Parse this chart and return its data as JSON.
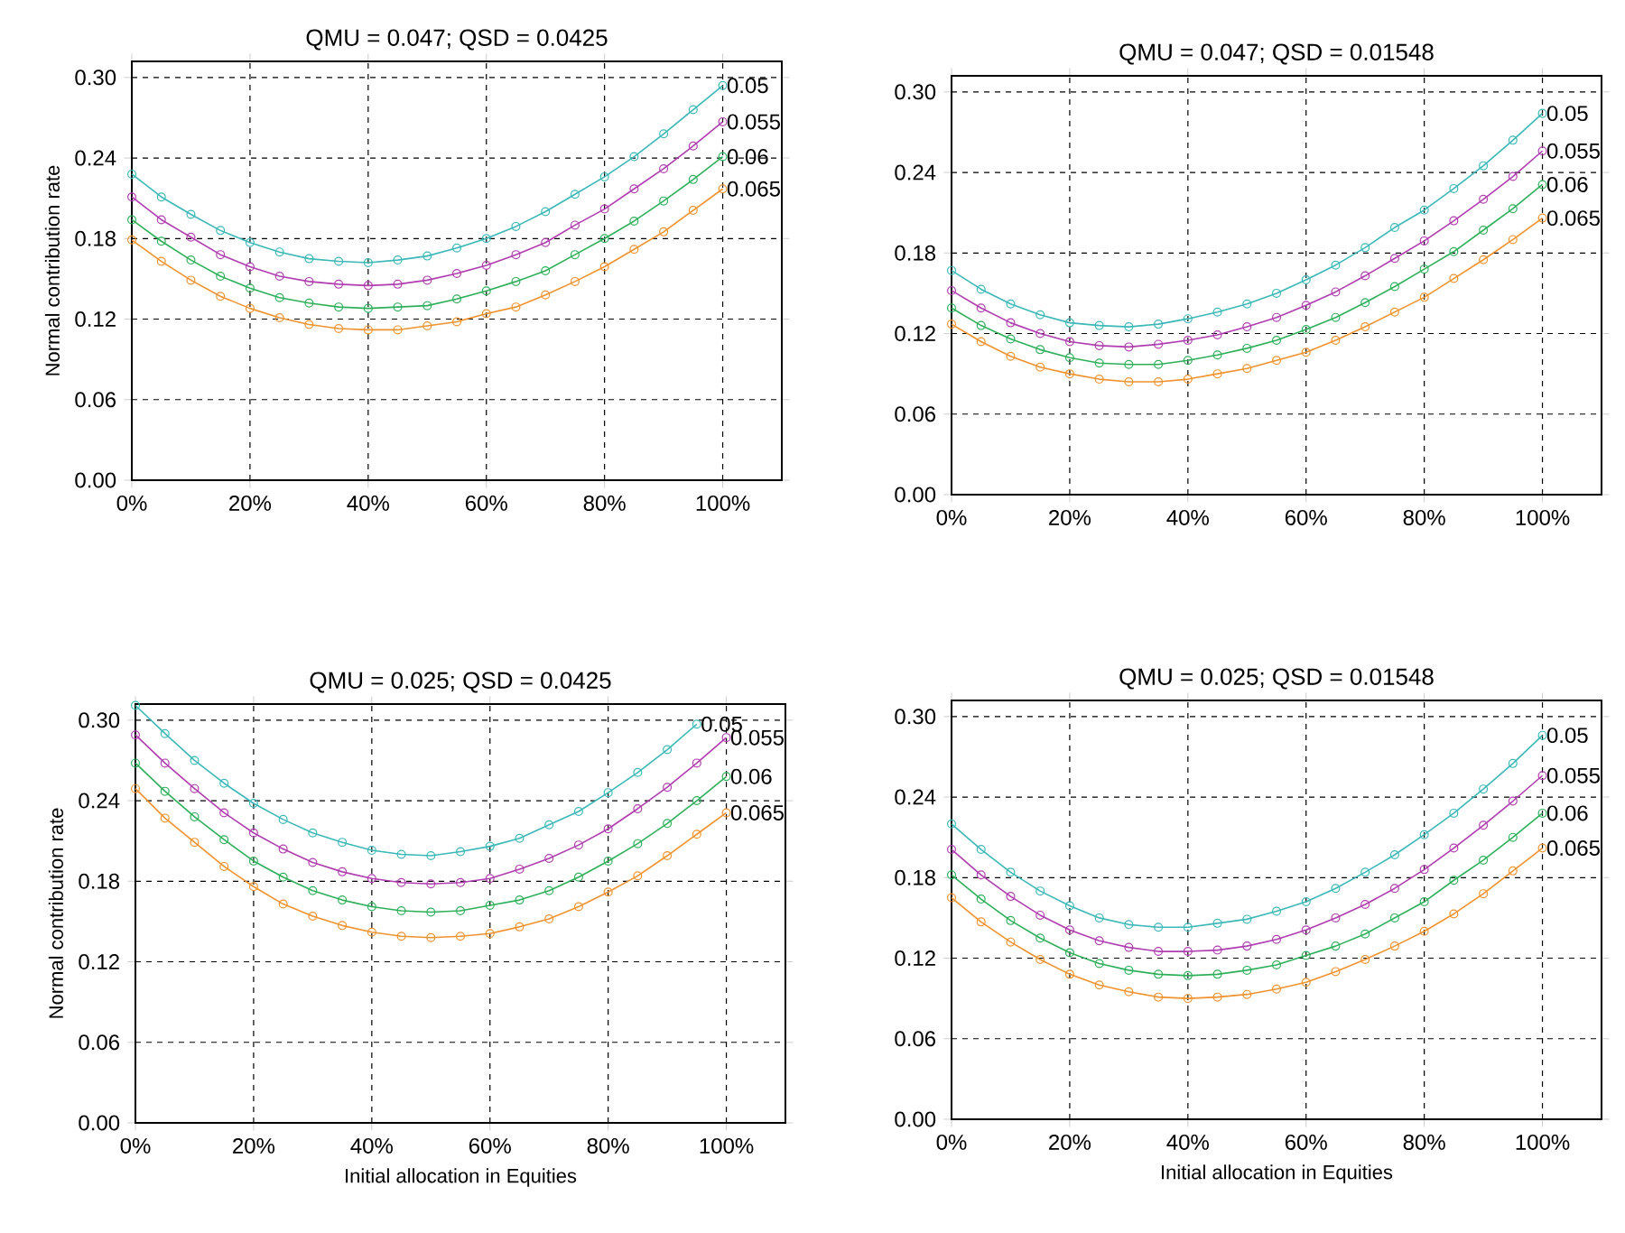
{
  "chart_data": [
    {
      "type": "line",
      "title": "QMU = 0.047; QSD = 0.0425",
      "ylabel": "Normal contribution rate",
      "grid": true,
      "marker": "circle",
      "line_style": "solid",
      "x": [
        0,
        5,
        10,
        15,
        20,
        25,
        30,
        35,
        40,
        45,
        50,
        55,
        60,
        65,
        70,
        75,
        80,
        85,
        90,
        95,
        100
      ],
      "xlim": [
        0,
        110
      ],
      "ylim": [
        0,
        0.312
      ],
      "xticks": [
        {
          "value": 0,
          "label": "0%"
        },
        {
          "value": 20,
          "label": "20%"
        },
        {
          "value": 40,
          "label": "40%"
        },
        {
          "value": 60,
          "label": "60%"
        },
        {
          "value": 80,
          "label": "80%"
        },
        {
          "value": 100,
          "label": "100%"
        }
      ],
      "yticks": [
        {
          "value": 0,
          "label": "0.00"
        },
        {
          "value": 0.06,
          "label": "0.06"
        },
        {
          "value": 0.12,
          "label": "0.12"
        },
        {
          "value": 0.18,
          "label": "0.18"
        },
        {
          "value": 0.24,
          "label": "0.24"
        },
        {
          "value": 0.3,
          "label": "0.30"
        }
      ],
      "series": [
        {
          "name": "0.05",
          "color": "#3bb8b8",
          "values": [
            0.228,
            0.211,
            0.198,
            0.186,
            0.177,
            0.17,
            0.165,
            0.163,
            0.162,
            0.164,
            0.167,
            0.173,
            0.18,
            0.189,
            0.2,
            0.213,
            0.226,
            0.241,
            0.258,
            0.276,
            0.294
          ]
        },
        {
          "name": "0.055",
          "color": "#b03cb0",
          "values": [
            0.211,
            0.194,
            0.181,
            0.168,
            0.159,
            0.152,
            0.148,
            0.146,
            0.145,
            0.146,
            0.149,
            0.154,
            0.16,
            0.168,
            0.177,
            0.19,
            0.202,
            0.217,
            0.232,
            0.249,
            0.267
          ]
        },
        {
          "name": "0.06",
          "color": "#2eb05a",
          "values": [
            0.194,
            0.178,
            0.164,
            0.152,
            0.143,
            0.136,
            0.132,
            0.129,
            0.128,
            0.129,
            0.13,
            0.135,
            0.141,
            0.148,
            0.156,
            0.168,
            0.18,
            0.193,
            0.208,
            0.224,
            0.241
          ]
        },
        {
          "name": "0.065",
          "color": "#f0922e",
          "values": [
            0.179,
            0.163,
            0.149,
            0.137,
            0.128,
            0.121,
            0.116,
            0.113,
            0.112,
            0.112,
            0.115,
            0.118,
            0.124,
            0.129,
            0.138,
            0.148,
            0.159,
            0.172,
            0.185,
            0.201,
            0.217
          ]
        }
      ]
    },
    {
      "type": "line",
      "title": "QMU = 0.047; QSD = 0.01548",
      "grid": true,
      "marker": "circle",
      "line_style": "solid",
      "x": [
        0,
        5,
        10,
        15,
        20,
        25,
        30,
        35,
        40,
        45,
        50,
        55,
        60,
        65,
        70,
        75,
        80,
        85,
        90,
        95,
        100
      ],
      "xlim": [
        0,
        110
      ],
      "ylim": [
        0,
        0.312
      ],
      "xticks": [
        {
          "value": 0,
          "label": "0%"
        },
        {
          "value": 20,
          "label": "20%"
        },
        {
          "value": 40,
          "label": "40%"
        },
        {
          "value": 60,
          "label": "60%"
        },
        {
          "value": 80,
          "label": "80%"
        },
        {
          "value": 100,
          "label": "100%"
        }
      ],
      "yticks": [
        {
          "value": 0,
          "label": "0.00"
        },
        {
          "value": 0.06,
          "label": "0.06"
        },
        {
          "value": 0.12,
          "label": "0.12"
        },
        {
          "value": 0.18,
          "label": "0.18"
        },
        {
          "value": 0.24,
          "label": "0.24"
        },
        {
          "value": 0.3,
          "label": "0.30"
        }
      ],
      "series": [
        {
          "name": "0.05",
          "color": "#3bb8b8",
          "values": [
            0.167,
            0.153,
            0.142,
            0.134,
            0.128,
            0.126,
            0.125,
            0.127,
            0.131,
            0.136,
            0.142,
            0.15,
            0.16,
            0.171,
            0.184,
            0.199,
            0.212,
            0.228,
            0.245,
            0.264,
            0.284
          ]
        },
        {
          "name": "0.055",
          "color": "#b03cb0",
          "values": [
            0.152,
            0.139,
            0.128,
            0.12,
            0.114,
            0.111,
            0.11,
            0.112,
            0.115,
            0.119,
            0.125,
            0.132,
            0.141,
            0.151,
            0.163,
            0.176,
            0.189,
            0.204,
            0.22,
            0.237,
            0.256
          ]
        },
        {
          "name": "0.06",
          "color": "#2eb05a",
          "values": [
            0.139,
            0.126,
            0.116,
            0.108,
            0.102,
            0.098,
            0.097,
            0.097,
            0.1,
            0.104,
            0.109,
            0.115,
            0.123,
            0.132,
            0.143,
            0.155,
            0.168,
            0.181,
            0.197,
            0.213,
            0.231
          ]
        },
        {
          "name": "0.065",
          "color": "#f0922e",
          "values": [
            0.127,
            0.114,
            0.103,
            0.095,
            0.09,
            0.086,
            0.084,
            0.084,
            0.086,
            0.09,
            0.094,
            0.1,
            0.106,
            0.115,
            0.125,
            0.136,
            0.147,
            0.161,
            0.175,
            0.19,
            0.206
          ]
        }
      ]
    },
    {
      "type": "line",
      "title": "QMU = 0.025; QSD = 0.0425",
      "xlabel": "Initial allocation in Equities",
      "ylabel": "Normal contribution rate",
      "grid": true,
      "marker": "circle",
      "line_style": "solid",
      "x": [
        0,
        5,
        10,
        15,
        20,
        25,
        30,
        35,
        40,
        45,
        50,
        55,
        60,
        65,
        70,
        75,
        80,
        85,
        90,
        95,
        100
      ],
      "xlim": [
        0,
        110
      ],
      "ylim": [
        0,
        0.312
      ],
      "xticks": [
        {
          "value": 0,
          "label": "0%"
        },
        {
          "value": 20,
          "label": "20%"
        },
        {
          "value": 40,
          "label": "40%"
        },
        {
          "value": 60,
          "label": "60%"
        },
        {
          "value": 80,
          "label": "80%"
        },
        {
          "value": 100,
          "label": "100%"
        }
      ],
      "yticks": [
        {
          "value": 0,
          "label": "0.00"
        },
        {
          "value": 0.06,
          "label": "0.06"
        },
        {
          "value": 0.12,
          "label": "0.12"
        },
        {
          "value": 0.18,
          "label": "0.18"
        },
        {
          "value": 0.24,
          "label": "0.24"
        },
        {
          "value": 0.3,
          "label": "0.30"
        }
      ],
      "series": [
        {
          "name": "0.05",
          "color": "#3bb8b8",
          "values": [
            0.311,
            0.29,
            0.27,
            0.253,
            0.238,
            0.226,
            0.216,
            0.209,
            0.203,
            0.2,
            0.199,
            0.202,
            0.206,
            0.212,
            0.222,
            0.232,
            0.246,
            0.261,
            0.278,
            0.297,
            null
          ]
        },
        {
          "name": "0.055",
          "color": "#b03cb0",
          "values": [
            0.289,
            0.268,
            0.249,
            0.231,
            0.216,
            0.204,
            0.194,
            0.187,
            0.182,
            0.179,
            0.178,
            0.179,
            0.182,
            0.189,
            0.197,
            0.207,
            0.219,
            0.234,
            0.25,
            0.268,
            0.287
          ]
        },
        {
          "name": "0.06",
          "color": "#2eb05a",
          "values": [
            0.268,
            0.247,
            0.228,
            0.211,
            0.195,
            0.183,
            0.173,
            0.166,
            0.161,
            0.158,
            0.157,
            0.158,
            0.162,
            0.166,
            0.173,
            0.183,
            0.195,
            0.208,
            0.223,
            0.24,
            0.258
          ]
        },
        {
          "name": "0.065",
          "color": "#f0922e",
          "values": [
            0.249,
            0.227,
            0.209,
            0.191,
            0.176,
            0.163,
            0.154,
            0.147,
            0.142,
            0.139,
            0.138,
            0.139,
            0.141,
            0.146,
            0.152,
            0.161,
            0.172,
            0.184,
            0.199,
            0.215,
            0.231
          ]
        }
      ]
    },
    {
      "type": "line",
      "title": "QMU = 0.025; QSD = 0.01548",
      "xlabel": "Initial allocation in Equities",
      "grid": true,
      "marker": "circle",
      "line_style": "solid",
      "x": [
        0,
        5,
        10,
        15,
        20,
        25,
        30,
        35,
        40,
        45,
        50,
        55,
        60,
        65,
        70,
        75,
        80,
        85,
        90,
        95,
        100
      ],
      "xlim": [
        0,
        110
      ],
      "ylim": [
        0,
        0.312
      ],
      "xticks": [
        {
          "value": 0,
          "label": "0%"
        },
        {
          "value": 20,
          "label": "20%"
        },
        {
          "value": 40,
          "label": "40%"
        },
        {
          "value": 60,
          "label": "60%"
        },
        {
          "value": 80,
          "label": "80%"
        },
        {
          "value": 100,
          "label": "100%"
        }
      ],
      "yticks": [
        {
          "value": 0,
          "label": "0.00"
        },
        {
          "value": 0.06,
          "label": "0.06"
        },
        {
          "value": 0.12,
          "label": "0.12"
        },
        {
          "value": 0.18,
          "label": "0.18"
        },
        {
          "value": 0.24,
          "label": "0.24"
        },
        {
          "value": 0.3,
          "label": "0.30"
        }
      ],
      "series": [
        {
          "name": "0.05",
          "color": "#3bb8b8",
          "values": [
            0.22,
            0.201,
            0.184,
            0.17,
            0.159,
            0.15,
            0.145,
            0.143,
            0.143,
            0.146,
            0.149,
            0.155,
            0.162,
            0.172,
            0.184,
            0.197,
            0.212,
            0.228,
            0.246,
            0.265,
            0.286
          ]
        },
        {
          "name": "0.055",
          "color": "#b03cb0",
          "values": [
            0.201,
            0.182,
            0.166,
            0.152,
            0.141,
            0.133,
            0.128,
            0.125,
            0.125,
            0.126,
            0.129,
            0.134,
            0.141,
            0.15,
            0.16,
            0.172,
            0.186,
            0.202,
            0.219,
            0.237,
            0.256
          ]
        },
        {
          "name": "0.06",
          "color": "#2eb05a",
          "values": [
            0.182,
            0.164,
            0.148,
            0.135,
            0.124,
            0.116,
            0.111,
            0.108,
            0.107,
            0.108,
            0.111,
            0.115,
            0.122,
            0.129,
            0.138,
            0.15,
            0.162,
            0.178,
            0.193,
            0.21,
            0.228
          ]
        },
        {
          "name": "0.065",
          "color": "#f0922e",
          "values": [
            0.165,
            0.147,
            0.132,
            0.119,
            0.108,
            0.1,
            0.095,
            0.091,
            0.09,
            0.091,
            0.093,
            0.097,
            0.102,
            0.11,
            0.119,
            0.129,
            0.14,
            0.153,
            0.168,
            0.185,
            0.202
          ]
        }
      ]
    }
  ]
}
